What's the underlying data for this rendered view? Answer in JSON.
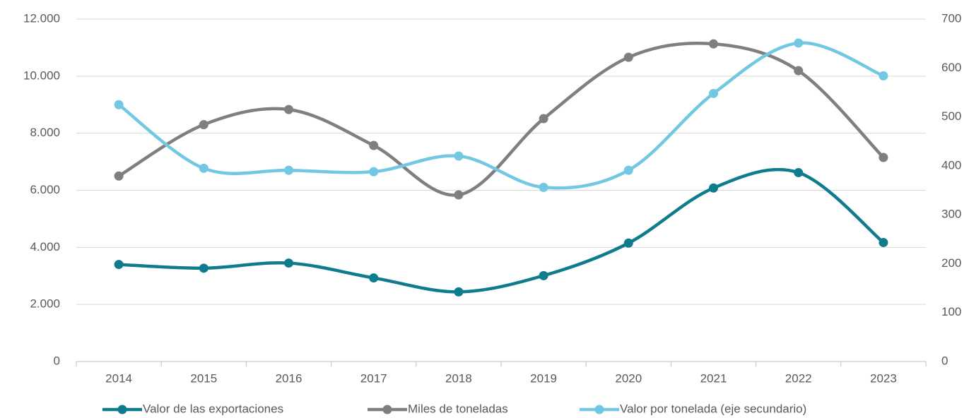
{
  "chart_data": {
    "type": "line",
    "smooth": true,
    "grid": true,
    "legend": "bottom",
    "categories": [
      "2014",
      "2015",
      "2016",
      "2017",
      "2018",
      "2019",
      "2020",
      "2021",
      "2022",
      "2023"
    ],
    "series": [
      {
        "name": "Valor de las exportaciones",
        "color": "#0e7c8c",
        "values": [
          3400,
          3270,
          3450,
          2930,
          2440,
          3010,
          4150,
          6080,
          6620,
          4170
        ]
      },
      {
        "name": "Miles de toneladas",
        "color": "#7f7f7f",
        "values": [
          6500,
          8300,
          8830,
          7570,
          5840,
          8510,
          10660,
          11130,
          10190,
          7150
        ]
      },
      {
        "name": "Valor por tonelada (eje secundario)",
        "color": "#72c7e3",
        "axis": "y2",
        "values": [
          525,
          395,
          391,
          388,
          420,
          356,
          391,
          548,
          651,
          584
        ]
      }
    ],
    "ylim": [
      0,
      12000
    ],
    "yticks": [
      0,
      {
        "value": 2000,
        "label": "2.000"
      },
      {
        "value": 4000,
        "label": "4.000"
      },
      {
        "value": 6000,
        "label": "6.000"
      },
      {
        "value": 8000,
        "label": "8.000"
      },
      {
        "value": 10000,
        "label": "10.000"
      },
      {
        "value": 12000,
        "label": "12.000"
      }
    ],
    "y2lim": [
      0,
      700
    ],
    "y2ticks": [
      0,
      100,
      200,
      300,
      400,
      500,
      600,
      700
    ]
  }
}
